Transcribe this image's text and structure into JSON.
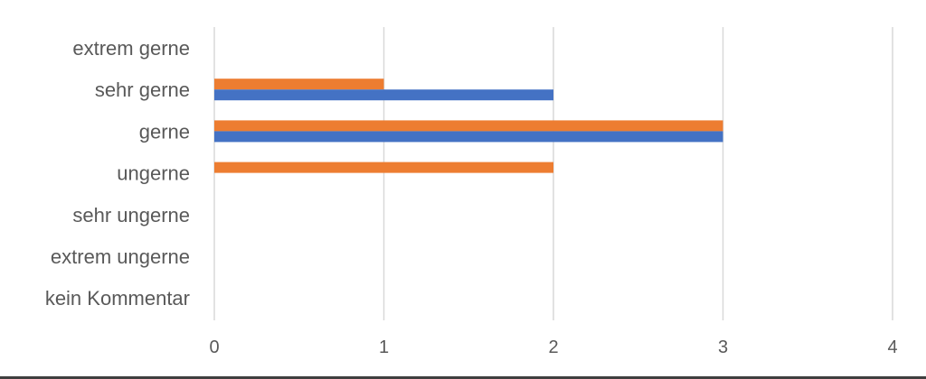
{
  "chart_data": {
    "type": "bar",
    "orientation": "horizontal",
    "categories": [
      "extrem gerne",
      "sehr gerne",
      "gerne",
      "ungerne",
      "sehr ungerne",
      "extrem ungerne",
      "kein Kommentar"
    ],
    "series": [
      {
        "values": [
          0,
          1,
          3,
          2,
          0,
          0,
          0
        ],
        "color": "#ED7D31"
      },
      {
        "values": [
          0,
          2,
          3,
          0,
          0,
          0,
          0
        ],
        "color": "#4472C4"
      }
    ],
    "x_ticks": [
      "0",
      "1",
      "2",
      "3",
      "4"
    ],
    "xlim": [
      0,
      4
    ],
    "title": "",
    "xlabel": "",
    "ylabel": "",
    "grid": "vertical",
    "legend": "none"
  }
}
